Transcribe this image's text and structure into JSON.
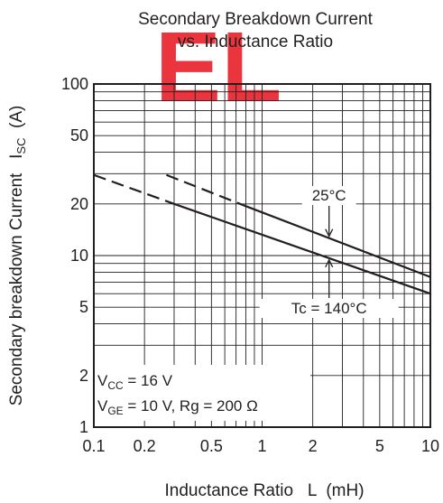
{
  "chart_data": {
    "type": "line",
    "title": "Secondary Breakdown Current",
    "subtitle": "vs. Inductance Ratio",
    "watermark": "EL",
    "xlabel": "Inductance Ratio   L  (mH)",
    "ylabel": {
      "prefix": "Secondary breakdown Current   I",
      "subscript": "SC",
      "suffix": "  (A)"
    },
    "x_scale": "log",
    "y_scale": "log",
    "xlim": [
      0.1,
      10
    ],
    "ylim": [
      1,
      100
    ],
    "grid": true,
    "x_ticks": [
      {
        "value": 0.1,
        "label": "0.1"
      },
      {
        "value": 0.2,
        "label": "0.2"
      },
      {
        "value": 0.5,
        "label": "0.5"
      },
      {
        "value": 1,
        "label": "1"
      },
      {
        "value": 2,
        "label": "2"
      },
      {
        "value": 5,
        "label": "5"
      },
      {
        "value": 10,
        "label": "10"
      }
    ],
    "y_ticks": [
      {
        "value": 1,
        "label": "1"
      },
      {
        "value": 2,
        "label": "2"
      },
      {
        "value": 5,
        "label": "5"
      },
      {
        "value": 10,
        "label": "10"
      },
      {
        "value": 20,
        "label": "20"
      },
      {
        "value": 50,
        "label": "50"
      },
      {
        "value": 100,
        "label": "100"
      }
    ],
    "series": [
      {
        "name": "25°C",
        "dashed": {
          "x": [
            0.27,
            0.77
          ],
          "y": [
            29.5,
            19.7
          ]
        },
        "solid": {
          "x": [
            0.77,
            10
          ],
          "y": [
            19.7,
            7.5
          ]
        }
      },
      {
        "name": "Tc = 140°C",
        "dashed": {
          "x": [
            0.1,
            0.3
          ],
          "y": [
            29.5,
            20.0
          ]
        },
        "solid": {
          "x": [
            0.3,
            10
          ],
          "y": [
            20.0,
            6.0
          ]
        }
      }
    ],
    "annotations": {
      "conditions_line1": {
        "prefix": "V",
        "subscript": "CC",
        "suffix": " = 16 V"
      },
      "conditions_line2": {
        "prefix": "V",
        "subscript": "GE",
        "suffix": " = 10 V, Rg = 200 Ω"
      },
      "arrow_at_x": 2.5
    }
  }
}
